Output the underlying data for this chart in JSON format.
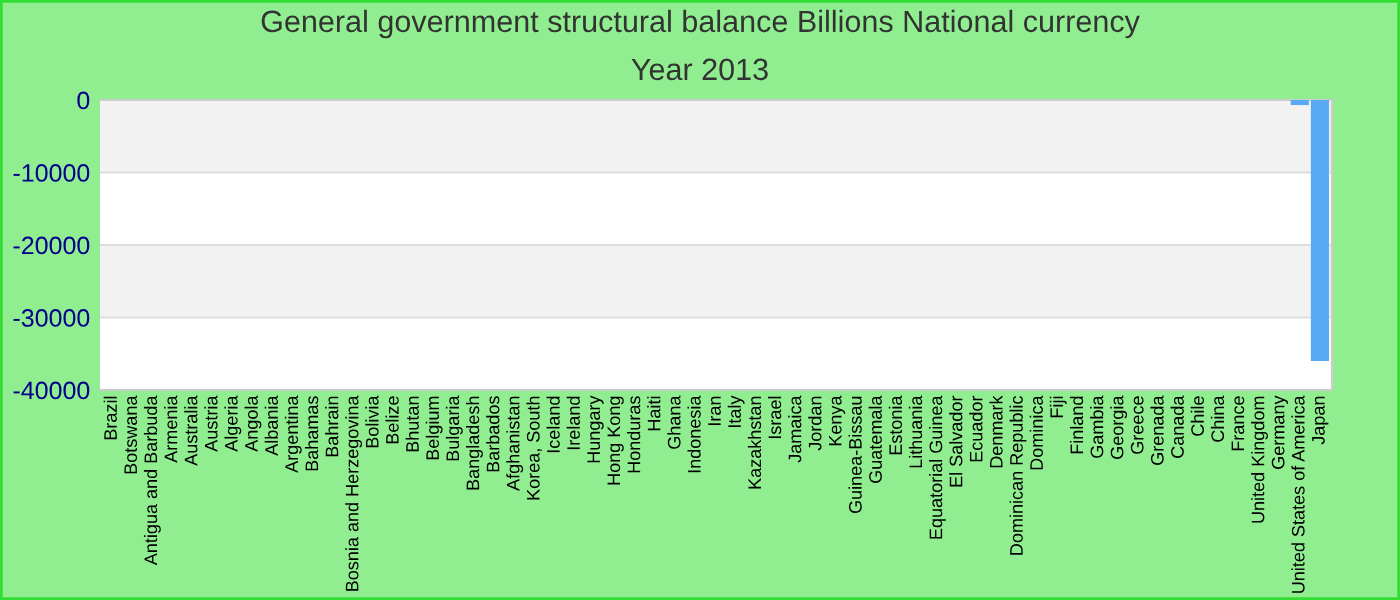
{
  "chart_data": {
    "type": "bar",
    "title": "General government structural balance Billions National currency",
    "subtitle": "Year 2013",
    "categories": [
      "Brazil",
      "Botswana",
      "Antigua and Barbuda",
      "Armenia",
      "Australia",
      "Austria",
      "Algeria",
      "Angola",
      "Albania",
      "Argentina",
      "Bahamas",
      "Bahrain",
      "Bosnia and Herzegovina",
      "Bolivia",
      "Belize",
      "Bhutan",
      "Belgium",
      "Bulgaria",
      "Bangladesh",
      "Barbados",
      "Afghanistan",
      "Korea, South",
      "Iceland",
      "Ireland",
      "Hungary",
      "Hong Kong",
      "Honduras",
      "Haiti",
      "Ghana",
      "Indonesia",
      "Iran",
      "Italy",
      "Kazakhstan",
      "Israel",
      "Jamaica",
      "Jordan",
      "Kenya",
      "Guinea-Bissau",
      "Guatemala",
      "Estonia",
      "Lithuania",
      "Equatorial Guinea",
      "El Salvador",
      "Ecuador",
      "Denmark",
      "Dominican Republic",
      "Dominica",
      "Fiji",
      "Finland",
      "Gambia",
      "Georgia",
      "Greece",
      "Grenada",
      "Canada",
      "Chile",
      "China",
      "France",
      "United Kingdom",
      "Germany",
      "United States of America",
      "Japan"
    ],
    "values": [
      0,
      0,
      0,
      0,
      0,
      0,
      0,
      0,
      0,
      0,
      0,
      0,
      0,
      0,
      0,
      0,
      0,
      0,
      0,
      0,
      0,
      0,
      0,
      0,
      0,
      0,
      0,
      0,
      0,
      0,
      0,
      0,
      0,
      0,
      0,
      0,
      0,
      0,
      0,
      0,
      0,
      0,
      0,
      0,
      0,
      0,
      0,
      0,
      0,
      0,
      0,
      0,
      0,
      0,
      0,
      0,
      0,
      0,
      0,
      -700,
      -36000
    ],
    "color": "#5aa9f5",
    "ylim": [
      -40000,
      0
    ],
    "yticks": [
      0,
      -10000,
      -20000,
      -30000,
      -40000
    ],
    "grid": "y",
    "legend": false
  }
}
